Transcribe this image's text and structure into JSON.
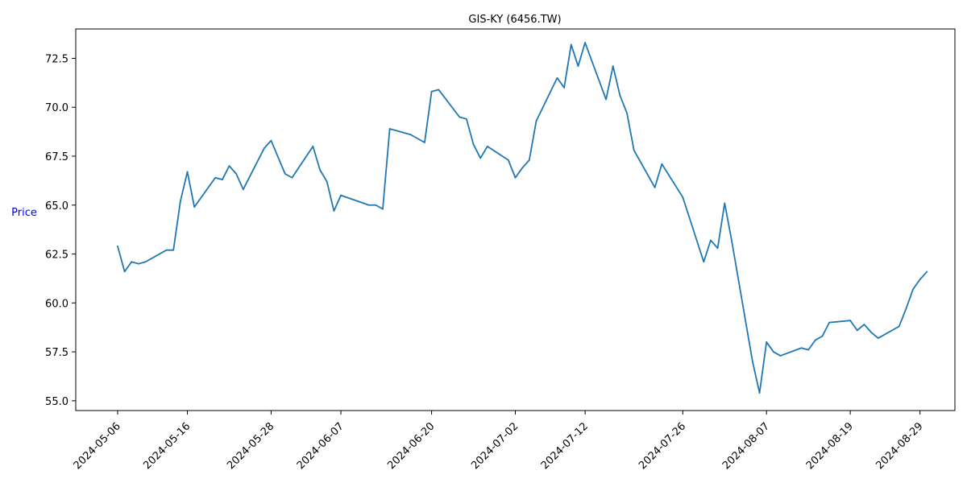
{
  "chart_data": {
    "type": "line",
    "title": "GIS-KY (6456.TW)",
    "xlabel": "",
    "ylabel": "Price",
    "ylabel_color": "#0000ff",
    "line_color": "#1f77b4",
    "grid": false,
    "xlim": [
      "2024-04-30",
      "2024-09-03"
    ],
    "ylim": [
      54.5,
      74.0
    ],
    "x_ticks": [
      "2024-05-06",
      "2024-05-16",
      "2024-05-28",
      "2024-06-07",
      "2024-06-20",
      "2024-07-02",
      "2024-07-12",
      "2024-07-26",
      "2024-08-07",
      "2024-08-19",
      "2024-08-29"
    ],
    "y_ticks": [
      55.0,
      57.5,
      60.0,
      62.5,
      65.0,
      67.5,
      70.0,
      72.5
    ],
    "y_tick_labels": [
      "55.0",
      "57.5",
      "60.0",
      "62.5",
      "65.0",
      "67.5",
      "70.0",
      "72.5"
    ],
    "series": [
      {
        "points": [
          {
            "x": "2024-05-06",
            "y": 62.9
          },
          {
            "x": "2024-05-07",
            "y": 61.6
          },
          {
            "x": "2024-05-08",
            "y": 62.1
          },
          {
            "x": "2024-05-09",
            "y": 62.0
          },
          {
            "x": "2024-05-10",
            "y": 62.1
          },
          {
            "x": "2024-05-13",
            "y": 62.7
          },
          {
            "x": "2024-05-14",
            "y": 62.7
          },
          {
            "x": "2024-05-15",
            "y": 65.2
          },
          {
            "x": "2024-05-16",
            "y": 66.7
          },
          {
            "x": "2024-05-17",
            "y": 64.9
          },
          {
            "x": "2024-05-20",
            "y": 66.4
          },
          {
            "x": "2024-05-21",
            "y": 66.3
          },
          {
            "x": "2024-05-22",
            "y": 67.0
          },
          {
            "x": "2024-05-23",
            "y": 66.6
          },
          {
            "x": "2024-05-24",
            "y": 65.8
          },
          {
            "x": "2024-05-27",
            "y": 67.9
          },
          {
            "x": "2024-05-28",
            "y": 68.3
          },
          {
            "x": "2024-05-30",
            "y": 66.6
          },
          {
            "x": "2024-05-31",
            "y": 66.4
          },
          {
            "x": "2024-06-03",
            "y": 68.0
          },
          {
            "x": "2024-06-04",
            "y": 66.8
          },
          {
            "x": "2024-06-05",
            "y": 66.2
          },
          {
            "x": "2024-06-06",
            "y": 64.7
          },
          {
            "x": "2024-06-07",
            "y": 65.5
          },
          {
            "x": "2024-06-11",
            "y": 65.0
          },
          {
            "x": "2024-06-12",
            "y": 65.0
          },
          {
            "x": "2024-06-13",
            "y": 64.8
          },
          {
            "x": "2024-06-14",
            "y": 68.9
          },
          {
            "x": "2024-06-17",
            "y": 68.6
          },
          {
            "x": "2024-06-19",
            "y": 68.2
          },
          {
            "x": "2024-06-20",
            "y": 70.8
          },
          {
            "x": "2024-06-21",
            "y": 70.9
          },
          {
            "x": "2024-06-24",
            "y": 69.5
          },
          {
            "x": "2024-06-25",
            "y": 69.4
          },
          {
            "x": "2024-06-26",
            "y": 68.1
          },
          {
            "x": "2024-06-27",
            "y": 67.4
          },
          {
            "x": "2024-06-28",
            "y": 68.0
          },
          {
            "x": "2024-07-01",
            "y": 67.3
          },
          {
            "x": "2024-07-02",
            "y": 66.4
          },
          {
            "x": "2024-07-03",
            "y": 66.9
          },
          {
            "x": "2024-07-04",
            "y": 67.3
          },
          {
            "x": "2024-07-05",
            "y": 69.3
          },
          {
            "x": "2024-07-08",
            "y": 71.5
          },
          {
            "x": "2024-07-09",
            "y": 71.0
          },
          {
            "x": "2024-07-10",
            "y": 73.2
          },
          {
            "x": "2024-07-11",
            "y": 72.1
          },
          {
            "x": "2024-07-12",
            "y": 73.3
          },
          {
            "x": "2024-07-15",
            "y": 70.4
          },
          {
            "x": "2024-07-16",
            "y": 72.1
          },
          {
            "x": "2024-07-17",
            "y": 70.6
          },
          {
            "x": "2024-07-18",
            "y": 69.7
          },
          {
            "x": "2024-07-19",
            "y": 67.8
          },
          {
            "x": "2024-07-22",
            "y": 65.9
          },
          {
            "x": "2024-07-23",
            "y": 67.1
          },
          {
            "x": "2024-07-26",
            "y": 65.4
          },
          {
            "x": "2024-07-29",
            "y": 62.1
          },
          {
            "x": "2024-07-30",
            "y": 63.2
          },
          {
            "x": "2024-07-31",
            "y": 62.8
          },
          {
            "x": "2024-08-01",
            "y": 65.1
          },
          {
            "x": "2024-08-02",
            "y": 63.2
          },
          {
            "x": "2024-08-05",
            "y": 57.0
          },
          {
            "x": "2024-08-06",
            "y": 55.4
          },
          {
            "x": "2024-08-07",
            "y": 58.0
          },
          {
            "x": "2024-08-08",
            "y": 57.5
          },
          {
            "x": "2024-08-09",
            "y": 57.3
          },
          {
            "x": "2024-08-12",
            "y": 57.7
          },
          {
            "x": "2024-08-13",
            "y": 57.6
          },
          {
            "x": "2024-08-14",
            "y": 58.1
          },
          {
            "x": "2024-08-15",
            "y": 58.3
          },
          {
            "x": "2024-08-16",
            "y": 59.0
          },
          {
            "x": "2024-08-19",
            "y": 59.1
          },
          {
            "x": "2024-08-20",
            "y": 58.6
          },
          {
            "x": "2024-08-21",
            "y": 58.9
          },
          {
            "x": "2024-08-22",
            "y": 58.5
          },
          {
            "x": "2024-08-23",
            "y": 58.2
          },
          {
            "x": "2024-08-26",
            "y": 58.8
          },
          {
            "x": "2024-08-27",
            "y": 59.7
          },
          {
            "x": "2024-08-28",
            "y": 60.7
          },
          {
            "x": "2024-08-29",
            "y": 61.2
          },
          {
            "x": "2024-08-30",
            "y": 61.6
          }
        ]
      }
    ]
  }
}
